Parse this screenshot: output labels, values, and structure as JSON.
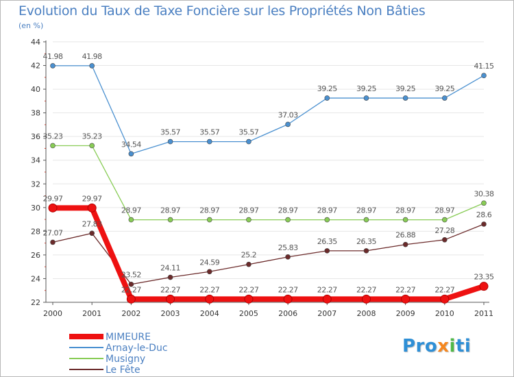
{
  "title": "Evolution du Taux de Taxe Foncière sur les Propriétés Non Bâties",
  "unit_label": "(en %)",
  "chart_data": {
    "type": "line",
    "title": "Evolution du Taux de Taxe Foncière sur les Propriétés Non Bâties",
    "ylabel": "(en %)",
    "xlabel": "",
    "x": [
      "2000",
      "2001",
      "2002",
      "2003",
      "2004",
      "2005",
      "2006",
      "2007",
      "2008",
      "2009",
      "2010",
      "2011"
    ],
    "ylim": [
      22,
      44
    ],
    "yticks": [
      22,
      24,
      26,
      28,
      30,
      32,
      34,
      36,
      38,
      40,
      42,
      44
    ],
    "grid": true,
    "legend_position": "bottom-left",
    "series": [
      {
        "name": "MIMEURE",
        "color": "#ee1111",
        "values": [
          29.97,
          29.97,
          22.27,
          22.27,
          22.27,
          22.27,
          22.27,
          22.27,
          22.27,
          22.27,
          22.27,
          23.35
        ],
        "labels": [
          "29.97",
          "29.97",
          "22.27",
          "22.27",
          "22.27",
          "22.27",
          "22.27",
          "22.27",
          "22.27",
          "22.27",
          "22.27",
          "23.35"
        ]
      },
      {
        "name": "Arnay-le-Duc",
        "color": "#4a90d0",
        "values": [
          41.98,
          41.98,
          34.54,
          35.57,
          35.57,
          35.57,
          37.03,
          39.25,
          39.25,
          39.25,
          39.25,
          41.15
        ],
        "labels": [
          "41.98",
          "41.98",
          "34.54",
          "35.57",
          "35.57",
          "35.57",
          "37.03",
          "39.25",
          "39.25",
          "39.25",
          "39.25",
          "41.15"
        ]
      },
      {
        "name": "Musigny",
        "color": "#88cc55",
        "values": [
          35.23,
          35.23,
          28.97,
          28.97,
          28.97,
          28.97,
          28.97,
          28.97,
          28.97,
          28.97,
          28.97,
          30.38
        ],
        "labels": [
          "35.23",
          "35.23",
          "28.97",
          "28.97",
          "28.97",
          "28.97",
          "28.97",
          "28.97",
          "28.97",
          "28.97",
          "28.97",
          "30.38"
        ]
      },
      {
        "name": "Le Fête",
        "color": "#6b2a2a",
        "values": [
          27.07,
          27.83,
          23.52,
          24.11,
          24.59,
          25.2,
          25.83,
          26.35,
          26.35,
          26.88,
          27.28,
          28.6
        ],
        "labels": [
          "27.07",
          "27.83",
          "23.52",
          "24.11",
          "24.59",
          "25.2",
          "25.83",
          "26.35",
          "26.35",
          "26.88",
          "27.28",
          "28.6"
        ]
      }
    ]
  },
  "logo": {
    "text": "Proxiti",
    "segments": [
      {
        "text": "Pro",
        "color": "#2e8fd6"
      },
      {
        "text": "x",
        "color": "#f5871f"
      },
      {
        "text": "i",
        "color": "#4fb848"
      },
      {
        "text": "ti",
        "color": "#2e8fd6"
      }
    ]
  }
}
